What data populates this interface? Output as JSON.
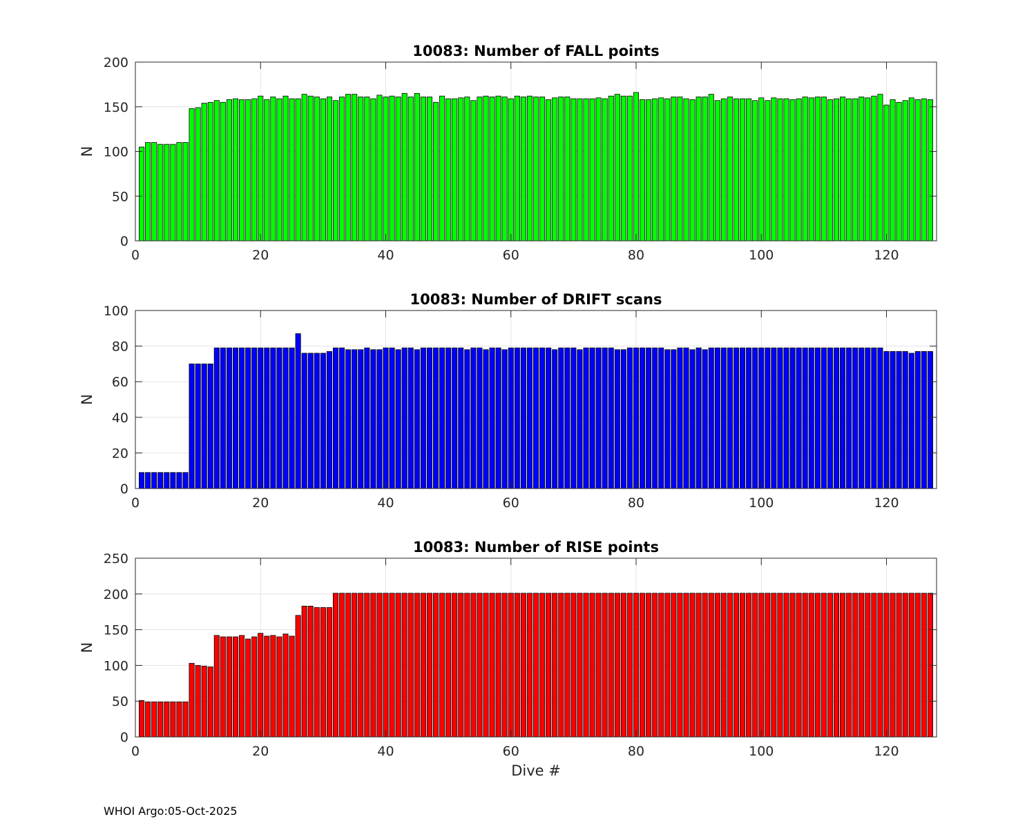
{
  "chart_data": [
    {
      "type": "bar",
      "title": "10083: Number of FALL points",
      "xlabel": "",
      "ylabel": "N",
      "xlim": [
        0,
        128
      ],
      "ylim": [
        0,
        200
      ],
      "xticks": [
        0,
        20,
        40,
        60,
        80,
        100,
        120
      ],
      "yticks": [
        0,
        50,
        100,
        150,
        200
      ],
      "grid": true,
      "color": "#00ff00",
      "x": [
        1,
        2,
        3,
        4,
        5,
        6,
        7,
        8,
        9,
        10,
        11,
        12,
        13,
        14,
        15,
        16,
        17,
        18,
        19,
        20,
        21,
        22,
        23,
        24,
        25,
        26,
        27,
        28,
        29,
        30,
        31,
        32,
        33,
        34,
        35,
        36,
        37,
        38,
        39,
        40,
        41,
        42,
        43,
        44,
        45,
        46,
        47,
        48,
        49,
        50,
        51,
        52,
        53,
        54,
        55,
        56,
        57,
        58,
        59,
        60,
        61,
        62,
        63,
        64,
        65,
        66,
        67,
        68,
        69,
        70,
        71,
        72,
        73,
        74,
        75,
        76,
        77,
        78,
        79,
        80,
        81,
        82,
        83,
        84,
        85,
        86,
        87,
        88,
        89,
        90,
        91,
        92,
        93,
        94,
        95,
        96,
        97,
        98,
        99,
        100,
        101,
        102,
        103,
        104,
        105,
        106,
        107,
        108,
        109,
        110,
        111,
        112,
        113,
        114,
        115,
        116,
        117,
        118,
        119,
        120,
        121,
        122,
        123,
        124,
        125,
        126,
        127
      ],
      "values": [
        105,
        110,
        110,
        108,
        108,
        108,
        110,
        110,
        148,
        149,
        154,
        155,
        157,
        155,
        158,
        159,
        158,
        158,
        159,
        162,
        158,
        161,
        159,
        162,
        159,
        159,
        164,
        162,
        161,
        159,
        161,
        157,
        161,
        164,
        164,
        161,
        161,
        159,
        163,
        161,
        162,
        161,
        165,
        161,
        165,
        161,
        161,
        155,
        162,
        159,
        159,
        160,
        161,
        157,
        161,
        162,
        161,
        162,
        161,
        159,
        162,
        161,
        162,
        161,
        161,
        158,
        160,
        161,
        161,
        159,
        159,
        159,
        159,
        160,
        159,
        162,
        164,
        162,
        162,
        166,
        158,
        158,
        159,
        160,
        159,
        161,
        161,
        159,
        158,
        161,
        161,
        164,
        157,
        159,
        161,
        159,
        159,
        159,
        157,
        160,
        157,
        160,
        159,
        159,
        158,
        159,
        161,
        160,
        161,
        161,
        158,
        159,
        161,
        159,
        159,
        161,
        160,
        162,
        164,
        152,
        158,
        155,
        157,
        160,
        158,
        159,
        158
      ]
    },
    {
      "type": "bar",
      "title": "10083: Number of DRIFT scans",
      "xlabel": "",
      "ylabel": "N",
      "xlim": [
        0,
        128
      ],
      "ylim": [
        0,
        100
      ],
      "xticks": [
        0,
        20,
        40,
        60,
        80,
        100,
        120
      ],
      "yticks": [
        0,
        20,
        40,
        60,
        80,
        100
      ],
      "grid": true,
      "color": "#0000ff",
      "x": [
        1,
        2,
        3,
        4,
        5,
        6,
        7,
        8,
        9,
        10,
        11,
        12,
        13,
        14,
        15,
        16,
        17,
        18,
        19,
        20,
        21,
        22,
        23,
        24,
        25,
        26,
        27,
        28,
        29,
        30,
        31,
        32,
        33,
        34,
        35,
        36,
        37,
        38,
        39,
        40,
        41,
        42,
        43,
        44,
        45,
        46,
        47,
        48,
        49,
        50,
        51,
        52,
        53,
        54,
        55,
        56,
        57,
        58,
        59,
        60,
        61,
        62,
        63,
        64,
        65,
        66,
        67,
        68,
        69,
        70,
        71,
        72,
        73,
        74,
        75,
        76,
        77,
        78,
        79,
        80,
        81,
        82,
        83,
        84,
        85,
        86,
        87,
        88,
        89,
        90,
        91,
        92,
        93,
        94,
        95,
        96,
        97,
        98,
        99,
        100,
        101,
        102,
        103,
        104,
        105,
        106,
        107,
        108,
        109,
        110,
        111,
        112,
        113,
        114,
        115,
        116,
        117,
        118,
        119,
        120,
        121,
        122,
        123,
        124,
        125,
        126,
        127
      ],
      "values": [
        9,
        9,
        9,
        9,
        9,
        9,
        9,
        9,
        70,
        70,
        70,
        70,
        79,
        79,
        79,
        79,
        79,
        79,
        79,
        79,
        79,
        79,
        79,
        79,
        79,
        87,
        76,
        76,
        76,
        76,
        77,
        79,
        79,
        78,
        78,
        78,
        79,
        78,
        78,
        79,
        79,
        78,
        79,
        79,
        78,
        79,
        79,
        79,
        79,
        79,
        79,
        79,
        78,
        79,
        79,
        78,
        79,
        79,
        78,
        79,
        79,
        79,
        79,
        79,
        79,
        79,
        78,
        79,
        79,
        79,
        78,
        79,
        79,
        79,
        79,
        79,
        78,
        78,
        79,
        79,
        79,
        79,
        79,
        79,
        78,
        78,
        79,
        79,
        78,
        79,
        78,
        79,
        79,
        79,
        79,
        79,
        79,
        79,
        79,
        79,
        79,
        79,
        79,
        79,
        79,
        79,
        79,
        79,
        79,
        79,
        79,
        79,
        79,
        79,
        79,
        79,
        79,
        79,
        79,
        77,
        77,
        77,
        77,
        76,
        77,
        77,
        77
      ]
    },
    {
      "type": "bar",
      "title": "10083: Number of RISE points",
      "xlabel": "Dive #",
      "ylabel": "N",
      "xlim": [
        0,
        128
      ],
      "ylim": [
        0,
        250
      ],
      "xticks": [
        0,
        20,
        40,
        60,
        80,
        100,
        120
      ],
      "yticks": [
        0,
        50,
        100,
        150,
        200,
        250
      ],
      "grid": true,
      "color": "#ff0000",
      "x": [
        1,
        2,
        3,
        4,
        5,
        6,
        7,
        8,
        9,
        10,
        11,
        12,
        13,
        14,
        15,
        16,
        17,
        18,
        19,
        20,
        21,
        22,
        23,
        24,
        25,
        26,
        27,
        28,
        29,
        30,
        31,
        32,
        33,
        34,
        35,
        36,
        37,
        38,
        39,
        40,
        41,
        42,
        43,
        44,
        45,
        46,
        47,
        48,
        49,
        50,
        51,
        52,
        53,
        54,
        55,
        56,
        57,
        58,
        59,
        60,
        61,
        62,
        63,
        64,
        65,
        66,
        67,
        68,
        69,
        70,
        71,
        72,
        73,
        74,
        75,
        76,
        77,
        78,
        79,
        80,
        81,
        82,
        83,
        84,
        85,
        86,
        87,
        88,
        89,
        90,
        91,
        92,
        93,
        94,
        95,
        96,
        97,
        98,
        99,
        100,
        101,
        102,
        103,
        104,
        105,
        106,
        107,
        108,
        109,
        110,
        111,
        112,
        113,
        114,
        115,
        116,
        117,
        118,
        119,
        120,
        121,
        122,
        123,
        124,
        125,
        126,
        127
      ],
      "values": [
        51,
        49,
        49,
        49,
        49,
        49,
        49,
        49,
        103,
        100,
        99,
        98,
        142,
        140,
        140,
        140,
        142,
        137,
        140,
        145,
        141,
        142,
        140,
        144,
        141,
        170,
        183,
        183,
        181,
        181,
        181,
        201,
        201,
        201,
        201,
        201,
        201,
        201,
        201,
        201,
        201,
        201,
        201,
        201,
        201,
        201,
        201,
        201,
        201,
        201,
        201,
        201,
        201,
        201,
        201,
        201,
        201,
        201,
        201,
        201,
        201,
        201,
        201,
        201,
        201,
        201,
        201,
        201,
        201,
        201,
        201,
        201,
        201,
        201,
        201,
        201,
        201,
        201,
        201,
        201,
        201,
        201,
        201,
        201,
        201,
        201,
        201,
        201,
        201,
        201,
        201,
        201,
        201,
        201,
        201,
        201,
        201,
        201,
        201,
        201,
        201,
        201,
        201,
        201,
        201,
        201,
        201,
        201,
        201,
        201,
        201,
        201,
        201,
        201,
        201,
        201,
        201,
        201,
        201,
        201,
        201,
        201,
        201,
        201,
        201,
        201,
        201
      ]
    }
  ],
  "footer": {
    "note": "WHOI Argo:05-Oct-2025"
  }
}
